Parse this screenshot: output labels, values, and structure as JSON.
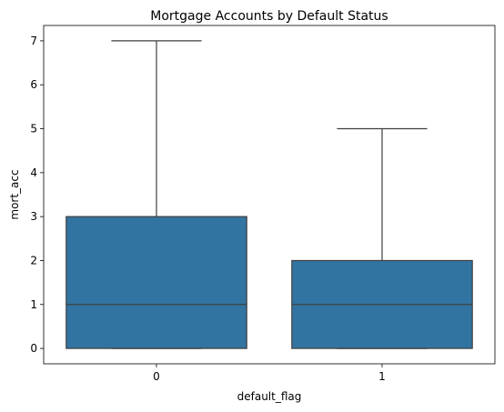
{
  "chart_data": {
    "type": "box",
    "title": "Mortgage Accounts by Default Status",
    "xlabel": "default_flag",
    "ylabel": "mort_acc",
    "categories": [
      "0",
      "1"
    ],
    "ylim": [
      -0.35,
      7.35
    ],
    "yticks": [
      0,
      1,
      2,
      3,
      4,
      5,
      6,
      7
    ],
    "grid": false,
    "boxes": [
      {
        "category": "0",
        "whisker_low": 0,
        "q1": 0,
        "median": 1,
        "q3": 3,
        "whisker_high": 7
      },
      {
        "category": "1",
        "whisker_low": 0,
        "q1": 0,
        "median": 1,
        "q3": 2,
        "whisker_high": 5
      }
    ],
    "colors": {
      "box_fill": "#3274a1",
      "line": "#3f3f3f"
    }
  }
}
